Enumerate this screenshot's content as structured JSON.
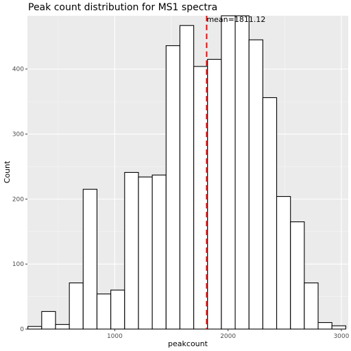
{
  "chart_data": {
    "type": "bar",
    "title": "Peak count distribution for MS1 spectra",
    "xlabel": "peakcount",
    "ylabel": "Count",
    "xlim": [
      229,
      3061
    ],
    "ylim": [
      0,
      482
    ],
    "x_ticks": [
      1000,
      2000,
      3000
    ],
    "y_ticks": [
      0,
      100,
      200,
      300,
      400
    ],
    "bin_width": 122,
    "bins": [
      {
        "x0": 233,
        "x1": 355,
        "count": 4
      },
      {
        "x0": 355,
        "x1": 477,
        "count": 27
      },
      {
        "x0": 477,
        "x1": 599,
        "count": 7
      },
      {
        "x0": 599,
        "x1": 721,
        "count": 71
      },
      {
        "x0": 721,
        "x1": 843,
        "count": 215
      },
      {
        "x0": 843,
        "x1": 965,
        "count": 54
      },
      {
        "x0": 965,
        "x1": 1087,
        "count": 60
      },
      {
        "x0": 1087,
        "x1": 1209,
        "count": 241
      },
      {
        "x0": 1209,
        "x1": 1331,
        "count": 234
      },
      {
        "x0": 1331,
        "x1": 1453,
        "count": 237
      },
      {
        "x0": 1453,
        "x1": 1575,
        "count": 436
      },
      {
        "x0": 1575,
        "x1": 1697,
        "count": 467
      },
      {
        "x0": 1697,
        "x1": 1819,
        "count": 404
      },
      {
        "x0": 1819,
        "x1": 1941,
        "count": 415
      },
      {
        "x0": 1941,
        "x1": 2063,
        "count": 482
      },
      {
        "x0": 2063,
        "x1": 2185,
        "count": 482
      },
      {
        "x0": 2185,
        "x1": 2307,
        "count": 445
      },
      {
        "x0": 2307,
        "x1": 2429,
        "count": 356
      },
      {
        "x0": 2429,
        "x1": 2551,
        "count": 204
      },
      {
        "x0": 2551,
        "x1": 2673,
        "count": 165
      },
      {
        "x0": 2673,
        "x1": 2795,
        "count": 71
      },
      {
        "x0": 2795,
        "x1": 2917,
        "count": 10
      },
      {
        "x0": 2917,
        "x1": 3039,
        "count": 5
      }
    ],
    "mean_line": {
      "value": 1811.12,
      "label": "mean=1811.12",
      "color": "#ff0000",
      "style": "dashed"
    },
    "grid": true,
    "colors": {
      "panel_background": "#ebebeb",
      "grid_major": "#ffffff",
      "bar_fill": "#ffffff",
      "bar_outline": "#000000"
    }
  }
}
